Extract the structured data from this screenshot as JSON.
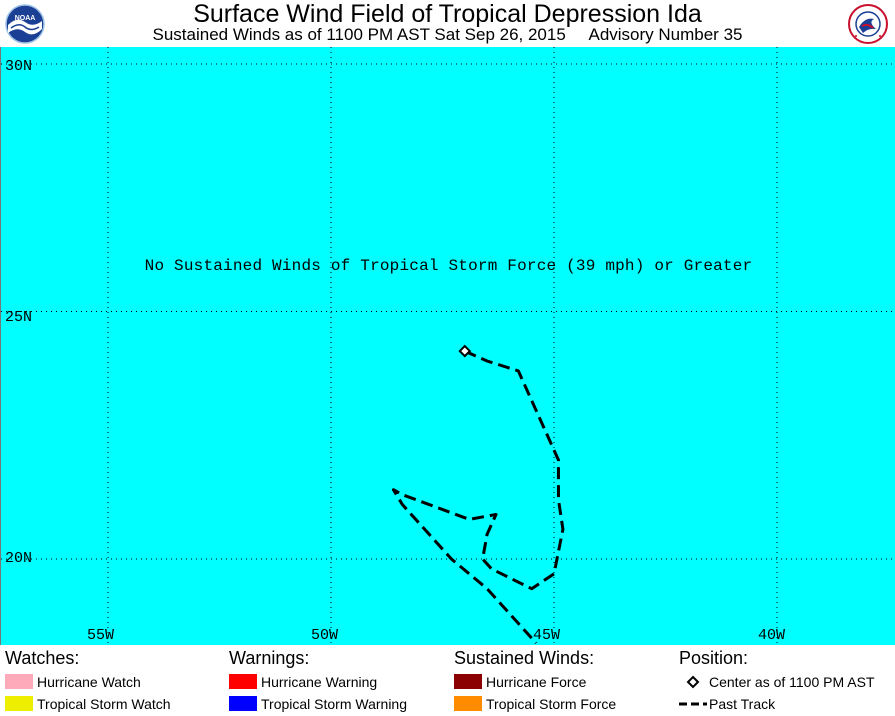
{
  "header": {
    "title": "Surface Wind Field of Tropical Depression Ida",
    "subtitle": "Sustained Winds as of 1100 PM AST Sat Sep 26, 2015     Advisory Number 35"
  },
  "logos": {
    "left": "NOAA",
    "right": "NATIONAL WEATHER SERVICE"
  },
  "map": {
    "background": "#00ffff",
    "lat_labels": [
      "30N",
      "25N",
      "20N"
    ],
    "lon_labels": [
      "55W",
      "50W",
      "45W",
      "40W"
    ],
    "notice": "No Sustained Winds of Tropical Storm Force (39 mph) or Greater",
    "center_lat_lon": [
      24.2,
      -47.0
    ],
    "past_track_lat_lon": [
      [
        24.2,
        -47.0
      ],
      [
        24.0,
        -46.5
      ],
      [
        23.8,
        -45.8
      ],
      [
        23.0,
        -45.4
      ],
      [
        22.0,
        -44.9
      ],
      [
        21.2,
        -44.9
      ],
      [
        20.6,
        -44.8
      ],
      [
        19.7,
        -45.0
      ],
      [
        19.4,
        -45.5
      ],
      [
        19.8,
        -46.4
      ],
      [
        20.0,
        -46.6
      ],
      [
        20.5,
        -46.5
      ],
      [
        20.9,
        -46.3
      ],
      [
        20.8,
        -46.9
      ],
      [
        21.3,
        -48.4
      ],
      [
        21.4,
        -48.6
      ],
      [
        21.1,
        -48.4
      ],
      [
        20.6,
        -47.9
      ],
      [
        20.0,
        -47.3
      ],
      [
        19.4,
        -46.5
      ],
      [
        18.6,
        -45.7
      ],
      [
        18.3,
        -45.4
      ]
    ]
  },
  "legend": {
    "watches": {
      "heading": "Watches:",
      "items": [
        {
          "label": "Hurricane Watch",
          "color": "#ffaabb"
        },
        {
          "label": "Tropical Storm Watch",
          "color": "#eeee00"
        }
      ]
    },
    "warnings": {
      "heading": "Warnings:",
      "items": [
        {
          "label": "Hurricane Warning",
          "color": "#ff0000"
        },
        {
          "label": "Tropical Storm Warning",
          "color": "#0000ff"
        }
      ]
    },
    "winds": {
      "heading": "Sustained Winds:",
      "items": [
        {
          "label": "Hurricane Force",
          "color": "#8b0000"
        },
        {
          "label": "Tropical Storm Force",
          "color": "#ff8c00"
        }
      ]
    },
    "position": {
      "heading": "Position:",
      "items": [
        {
          "label": "Center as of 1100 PM AST",
          "icon": "diamond-icon"
        },
        {
          "label": "Past Track",
          "icon": "dashed-line-icon"
        }
      ]
    }
  }
}
